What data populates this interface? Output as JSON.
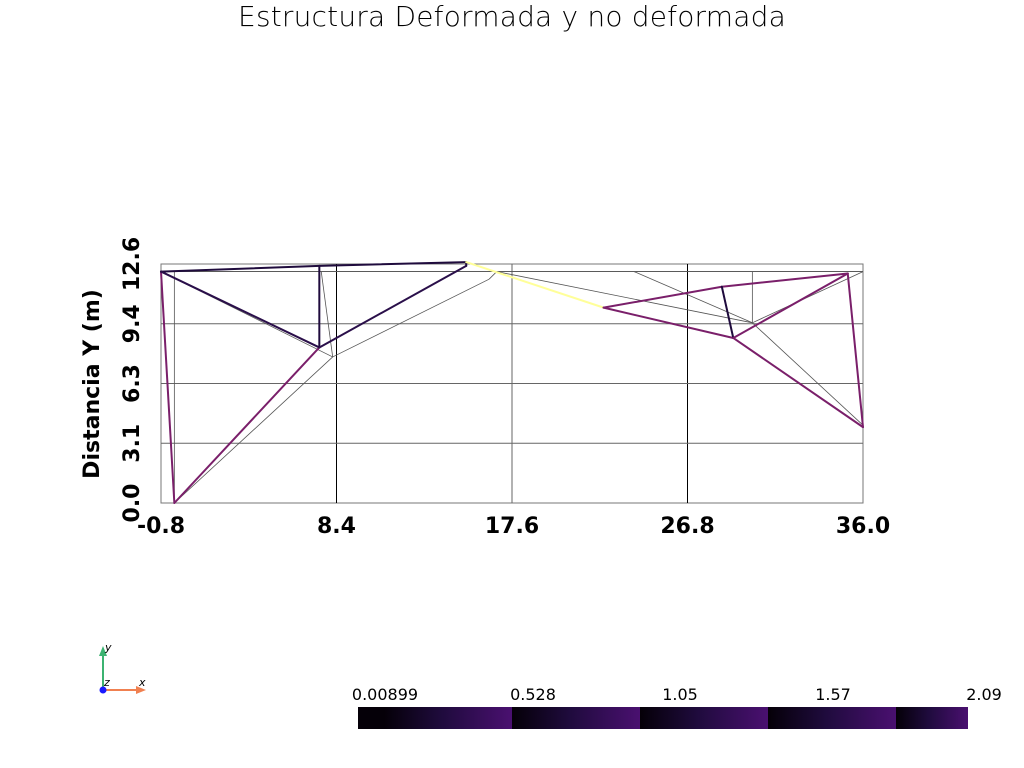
{
  "title": "Estructura Deformada y no deformada",
  "chart_data": {
    "type": "structure-wireframe",
    "ylabel": "Distancia Y (m)",
    "xlim": [
      -0.8,
      36.0
    ],
    "ylim": [
      0.0,
      12.6
    ],
    "x_ticks": [
      "-0.8",
      "8.4",
      "17.6",
      "26.8",
      "36.0"
    ],
    "y_ticks": [
      "0.0",
      "3.1",
      "6.3",
      "9.4",
      "12.6"
    ],
    "grid": true,
    "undeformed": {
      "color": "#555555",
      "segments": [
        [
          [
            -0.8,
            12.2
          ],
          [
            -0.1,
            0.0
          ]
        ],
        [
          [
            -0.8,
            12.2
          ],
          [
            16.8,
            12.2
          ]
        ],
        [
          [
            16.8,
            12.2
          ],
          [
            36.0,
            12.2
          ]
        ],
        [
          [
            -0.8,
            12.2
          ],
          [
            8.2,
            7.7
          ]
        ],
        [
          [
            -0.1,
            12.2
          ],
          [
            -0.1,
            0.0
          ]
        ],
        [
          [
            7.6,
            12.2
          ],
          [
            8.2,
            7.7
          ]
        ],
        [
          [
            8.2,
            7.7
          ],
          [
            16.4,
            11.8
          ]
        ],
        [
          [
            -0.1,
            0.0
          ],
          [
            8.2,
            7.7
          ]
        ],
        [
          [
            16.4,
            11.8
          ],
          [
            16.8,
            12.2
          ]
        ],
        [
          [
            16.8,
            12.2
          ],
          [
            30.2,
            9.5
          ]
        ],
        [
          [
            30.2,
            9.5
          ],
          [
            36.0,
            12.2
          ]
        ],
        [
          [
            30.2,
            12.2
          ],
          [
            30.2,
            9.5
          ]
        ],
        [
          [
            30.2,
            9.5
          ],
          [
            36.0,
            4.1
          ]
        ],
        [
          [
            24.0,
            12.2
          ],
          [
            30.2,
            9.5
          ]
        ],
        [
          [
            -0.8,
            12.2
          ],
          [
            36.0,
            12.2
          ]
        ]
      ]
    },
    "deformed": {
      "segments": [
        {
          "p": [
            [
              -0.8,
              12.2
            ],
            [
              -0.1,
              0.0
            ]
          ],
          "color": "#7a1f6a"
        },
        {
          "p": [
            [
              -0.1,
              0.0
            ],
            [
              7.5,
              8.2
            ]
          ],
          "color": "#7a1f6a"
        },
        {
          "p": [
            [
              -0.8,
              12.2
            ],
            [
              7.5,
              12.5
            ]
          ],
          "color": "#1f0b3d"
        },
        {
          "p": [
            [
              7.5,
              12.5
            ],
            [
              15.2,
              12.7
            ]
          ],
          "color": "#1f0b3d"
        },
        {
          "p": [
            [
              -0.8,
              12.2
            ],
            [
              7.5,
              8.2
            ]
          ],
          "color": "#2a0f4a"
        },
        {
          "p": [
            [
              7.5,
              12.5
            ],
            [
              7.5,
              8.2
            ]
          ],
          "color": "#1f0b3d"
        },
        {
          "p": [
            [
              7.5,
              8.2
            ],
            [
              15.2,
              12.5
            ]
          ],
          "color": "#2a0f4a"
        },
        {
          "p": [
            [
              15.2,
              12.7
            ],
            [
              15.2,
              12.5
            ]
          ],
          "color": "#1f0b3d"
        },
        {
          "p": [
            [
              15.2,
              12.7
            ],
            [
              22.4,
              10.3
            ]
          ],
          "color": "#ffff99"
        },
        {
          "p": [
            [
              22.4,
              10.3
            ],
            [
              29.2,
              8.7
            ]
          ],
          "color": "#7a1f6a"
        },
        {
          "p": [
            [
              22.4,
              10.3
            ],
            [
              28.6,
              11.4
            ]
          ],
          "color": "#7a1f6a"
        },
        {
          "p": [
            [
              28.6,
              11.4
            ],
            [
              35.2,
              12.1
            ]
          ],
          "color": "#7a1f6a"
        },
        {
          "p": [
            [
              28.6,
              11.4
            ],
            [
              29.2,
              8.7
            ]
          ],
          "color": "#1f0b3d"
        },
        {
          "p": [
            [
              29.2,
              8.7
            ],
            [
              35.2,
              12.1
            ]
          ],
          "color": "#7a1f6a"
        },
        {
          "p": [
            [
              29.2,
              8.7
            ],
            [
              36.0,
              4.0
            ]
          ],
          "color": "#7a1f6a"
        },
        {
          "p": [
            [
              35.2,
              12.1
            ],
            [
              36.0,
              4.0
            ]
          ],
          "color": "#7a1f6a"
        }
      ]
    },
    "colorbar": {
      "labels": [
        "0.00899",
        "0.528",
        "1.05",
        "1.57",
        "2.09"
      ],
      "colors": {
        "dark": "#050008",
        "mid": "#1f0b3d",
        "bright": "#4a1070"
      }
    }
  },
  "axes_triad": {
    "x": "x",
    "y": "y",
    "z": "z"
  }
}
